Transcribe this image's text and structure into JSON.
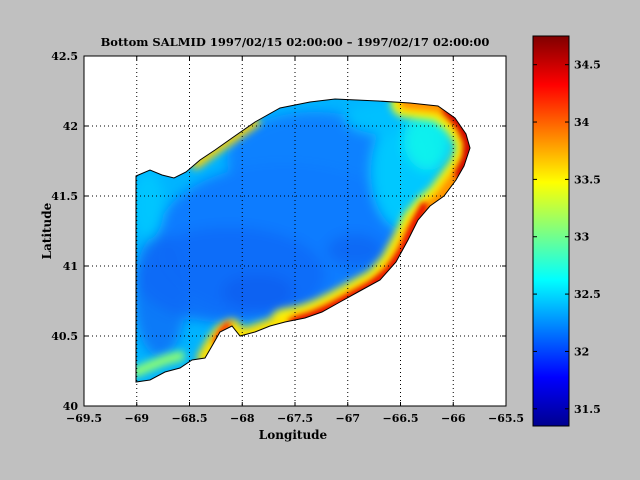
{
  "chart_data": {
    "type": "heatmap",
    "title": "Bottom SALMID  1997/02/15 02:00:00 – 1997/02/17 02:00:00",
    "xlabel": "Longitude",
    "ylabel": "Latitude",
    "xlim": [
      -69.5,
      -65.5
    ],
    "ylim": [
      40,
      42.5
    ],
    "xticks": [
      "−69.5",
      "−69",
      "−68.5",
      "−68",
      "−67.5",
      "−67",
      "−66.5",
      "−66",
      "−65.5"
    ],
    "yticks": [
      "40",
      "40.5",
      "41",
      "41.5",
      "42",
      "42.5"
    ],
    "grid": true,
    "colormap": "jet",
    "colorbar": {
      "range": [
        31.35,
        34.75
      ],
      "ticks": [
        "31.5",
        "32",
        "32.5",
        "33",
        "33.5",
        "34",
        "34.5"
      ]
    },
    "background_color": "#c0c0c0",
    "nan_color": "#ffffff"
  }
}
